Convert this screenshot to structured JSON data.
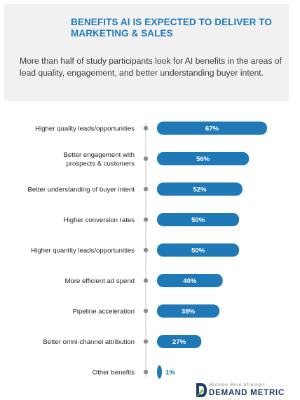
{
  "header": {
    "title": "BENEFITS AI IS EXPECTED TO DELIVER TO MARKETING & SALES",
    "subtitle": "More than half of study participants look for AI benefits in the areas of lead quality, engagement, and better understanding buyer intent."
  },
  "brand": {
    "tagline": "Become More Strategic",
    "name": "DEMAND METRIC",
    "logo_icon": "demand-metric-logo-icon"
  },
  "colors": {
    "bar": "#1f79b6",
    "axis": "#cfcfcf",
    "dot": "#8c8c8c"
  },
  "chart_data": {
    "type": "bar",
    "orientation": "horizontal",
    "categories": [
      [
        "Higher quality leads/opportunities"
      ],
      [
        "Better engagement with",
        "prospects & customers"
      ],
      [
        "Better understanding of buyer intent"
      ],
      [
        "Higher conversion rates"
      ],
      [
        "Higher quantity leads/opportunities"
      ],
      [
        "More efficient ad spend"
      ],
      [
        "Pipeline acceleration"
      ],
      [
        "Better omni-channel attribution"
      ],
      [
        "Other benefits"
      ]
    ],
    "values": [
      67,
      56,
      52,
      50,
      50,
      40,
      38,
      27,
      1
    ],
    "value_labels": [
      "67%",
      "56%",
      "52%",
      "50%",
      "50%",
      "40%",
      "38%",
      "27%",
      "1%"
    ],
    "xlim": [
      0,
      67
    ],
    "grid": false,
    "legend": "none"
  }
}
